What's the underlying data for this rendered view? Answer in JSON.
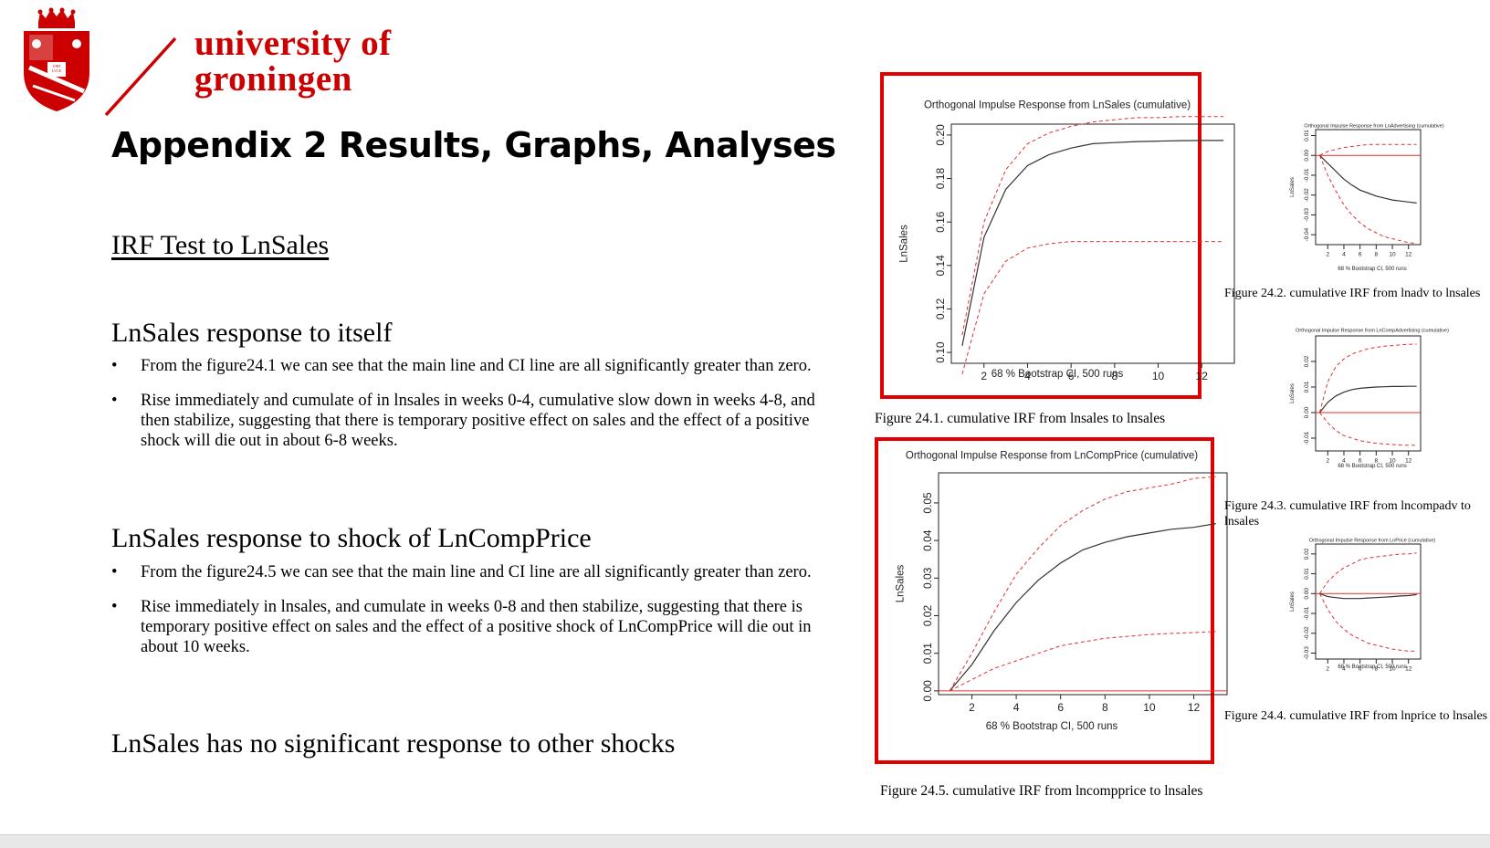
{
  "header": {
    "university_line1": "university of",
    "university_line2": "groningen",
    "crest_text": "VIRT LVCE NA"
  },
  "title": "Appendix 2 Results, Graphs, Analyses",
  "section_irf": "IRF Test to LnSales",
  "sec1": {
    "heading": "LnSales response to itself",
    "bullets": [
      "From the figure24.1 we can see that the main line and CI line are all significantly greater than zero.",
      "Rise immediately and cumulate of in lnsales in weeks 0-4, cumulative slow down in weeks 4-8, and then stabilize, suggesting that there is temporary positive effect on sales and the effect of a positive shock will die out in about 6-8 weeks."
    ]
  },
  "sec2": {
    "heading": "LnSales response to shock of LnCompPrice",
    "bullets": [
      "From the figure24.5 we can see that the main line and CI line are all significantly greater than zero.",
      "Rise immediately in lnsales, and cumulate in weeks 0-8 and then stabilize, suggesting that there is temporary positive effect on sales and the effect of a positive shock of LnCompPrice will die out in about 10 weeks."
    ]
  },
  "sec3": {
    "heading": "LnSales has no significant response to other shocks"
  },
  "captions": {
    "fig241": "Figure 24.1. cumulative IRF from lnsales to lnsales",
    "fig242": "Figure 24.2. cumulative IRF from lnadv to lnsales",
    "fig243_line1": "Figure 24.3. cumulative IRF from lncompadv to",
    "fig243_line2": "lnsales",
    "fig244": "Figure 24.4. cumulative IRF from lnprice to lnsales",
    "fig245": "Figure 24.5. cumulative IRF from lncompprice to lnsales"
  },
  "chart_data": [
    {
      "id": "fig241",
      "type": "line",
      "title": "Orthogonal Impulse Response from LnSales (cumulative)",
      "xlabel": "68 % Bootstrap CI,  500 runs",
      "ylabel": "LnSales",
      "xlim": [
        0.5,
        13.5
      ],
      "ylim": [
        0.095,
        0.205
      ],
      "xticks": [
        2,
        4,
        6,
        8,
        10,
        12
      ],
      "yticks": [
        0.1,
        0.12,
        0.14,
        0.16,
        0.18,
        0.2
      ],
      "ytick_labels": [
        "0.10",
        "0.12",
        "0.14",
        "0.16",
        "0.18",
        "0.20"
      ],
      "x": [
        1,
        2,
        3,
        4,
        5,
        6,
        7,
        8,
        9,
        10,
        11,
        12,
        13
      ],
      "series": [
        {
          "role": "main",
          "values": [
            0.103,
            0.153,
            0.175,
            0.186,
            0.191,
            0.194,
            0.196,
            0.1965,
            0.197,
            0.1972,
            0.1974,
            0.1975,
            0.1975
          ]
        },
        {
          "role": "upper",
          "values": [
            0.108,
            0.16,
            0.184,
            0.196,
            0.201,
            0.204,
            0.206,
            0.207,
            0.208,
            0.208,
            0.2085,
            0.2085,
            0.2085
          ]
        },
        {
          "role": "lower",
          "values": [
            0.09,
            0.127,
            0.142,
            0.148,
            0.15,
            0.151,
            0.151,
            0.151,
            0.151,
            0.151,
            0.151,
            0.151,
            0.151
          ]
        }
      ],
      "zero_line": false
    },
    {
      "id": "fig245",
      "type": "line",
      "title": "Orthogonal Impulse Response from LnCompPrice (cumulative)",
      "xlabel": "68 % Bootstrap CI,  500 runs",
      "ylabel": "LnSales",
      "xlim": [
        0.5,
        13.5
      ],
      "ylim": [
        -0.001,
        0.058
      ],
      "xticks": [
        2,
        4,
        6,
        8,
        10,
        12
      ],
      "yticks": [
        0,
        0.01,
        0.02,
        0.03,
        0.04,
        0.05
      ],
      "ytick_labels": [
        "0.00",
        "0.01",
        "0.02",
        "0.03",
        "0.04",
        "0.05"
      ],
      "x": [
        1,
        2,
        3,
        4,
        5,
        6,
        7,
        8,
        9,
        10,
        11,
        12,
        13
      ],
      "series": [
        {
          "role": "main",
          "values": [
            0.0,
            0.007,
            0.016,
            0.0235,
            0.0295,
            0.034,
            0.0375,
            0.0395,
            0.041,
            0.042,
            0.043,
            0.0435,
            0.0445
          ]
        },
        {
          "role": "upper",
          "values": [
            0.0,
            0.01,
            0.021,
            0.031,
            0.038,
            0.044,
            0.048,
            0.051,
            0.053,
            0.054,
            0.055,
            0.0565,
            0.057
          ]
        },
        {
          "role": "lower",
          "values": [
            0.0,
            0.003,
            0.006,
            0.008,
            0.01,
            0.012,
            0.013,
            0.014,
            0.0145,
            0.015,
            0.0153,
            0.0155,
            0.0158
          ]
        }
      ],
      "zero_line": true
    },
    {
      "id": "fig242",
      "type": "line",
      "title": "Orthogonal Impulse Response from LnAdvertising (cumulative)",
      "xlabel": "68 % Bootstrap CI,  500 runs",
      "ylabel": "LnSales",
      "xlim": [
        0.5,
        13.5
      ],
      "ylim": [
        -0.045,
        0.013
      ],
      "xticks": [
        2,
        4,
        6,
        8,
        10,
        12
      ],
      "yticks": [
        -0.04,
        -0.03,
        -0.02,
        -0.01,
        0.0,
        0.01
      ],
      "ytick_labels": [
        "-0.04",
        "-0.03",
        "-0.02",
        "-0.01",
        "0.00",
        "0.01"
      ],
      "x": [
        1,
        2,
        3,
        4,
        5,
        6,
        7,
        8,
        9,
        10,
        11,
        12,
        13
      ],
      "series": [
        {
          "role": "main",
          "values": [
            0.0,
            -0.004,
            -0.008,
            -0.012,
            -0.015,
            -0.0175,
            -0.019,
            -0.0205,
            -0.0215,
            -0.0225,
            -0.023,
            -0.0235,
            -0.024
          ]
        },
        {
          "role": "upper",
          "values": [
            0.0,
            0.002,
            0.003,
            0.004,
            0.0045,
            0.005,
            0.0055,
            0.0055,
            0.0055,
            0.0055,
            0.0055,
            0.0055,
            0.0055
          ]
        },
        {
          "role": "lower",
          "values": [
            0.0,
            -0.01,
            -0.018,
            -0.025,
            -0.03,
            -0.034,
            -0.037,
            -0.039,
            -0.041,
            -0.042,
            -0.043,
            -0.044,
            -0.0445
          ]
        }
      ],
      "zero_line": true
    },
    {
      "id": "fig243",
      "type": "line",
      "title": "Orthogonal Impulse Response from LnCompAdvertising (cumulative)",
      "xlabel": "68 % Bootstrap CI,  500 runs",
      "ylabel": "LnSales",
      "xlim": [
        0.5,
        13.5
      ],
      "ylim": [
        -0.015,
        0.03
      ],
      "xticks": [
        2,
        4,
        6,
        8,
        10,
        12
      ],
      "yticks": [
        -0.01,
        0.0,
        0.01,
        0.02
      ],
      "ytick_labels": [
        "-0.01",
        "0.00",
        "0.01",
        "0.02"
      ],
      "x": [
        1,
        2,
        3,
        4,
        5,
        6,
        7,
        8,
        9,
        10,
        11,
        12,
        13
      ],
      "series": [
        {
          "role": "main",
          "values": [
            0.0,
            0.004,
            0.0065,
            0.008,
            0.009,
            0.0095,
            0.0098,
            0.01,
            0.0101,
            0.0102,
            0.0102,
            0.0103,
            0.0103
          ]
        },
        {
          "role": "upper",
          "values": [
            0.0,
            0.012,
            0.018,
            0.021,
            0.023,
            0.024,
            0.025,
            0.0255,
            0.026,
            0.0262,
            0.0265,
            0.0267,
            0.0268
          ]
        },
        {
          "role": "lower",
          "values": [
            0.0,
            -0.004,
            -0.007,
            -0.009,
            -0.01,
            -0.011,
            -0.0115,
            -0.012,
            -0.0123,
            -0.0125,
            -0.0127,
            -0.0128,
            -0.0128
          ]
        }
      ],
      "zero_line": true
    },
    {
      "id": "fig244",
      "type": "line",
      "title": "Orthogonal Impulse Response from LnPrice (cumulative)",
      "xlabel": "68 % Bootstrap CI,  500 runs",
      "ylabel": "LnSales",
      "xlim": [
        0.5,
        13.5
      ],
      "ylim": [
        -0.033,
        0.025
      ],
      "xticks": [
        2,
        4,
        6,
        8,
        10,
        12
      ],
      "yticks": [
        -0.03,
        -0.02,
        -0.01,
        0.0,
        0.01,
        0.02
      ],
      "ytick_labels": [
        "-0.03",
        "-0.02",
        "-0.01",
        "0.00",
        "0.01",
        "0.02"
      ],
      "x": [
        1,
        2,
        3,
        4,
        5,
        6,
        7,
        8,
        9,
        10,
        11,
        12,
        13
      ],
      "series": [
        {
          "role": "main",
          "values": [
            0.0,
            -0.0015,
            -0.002,
            -0.0025,
            -0.0025,
            -0.0025,
            -0.0022,
            -0.002,
            -0.0018,
            -0.0015,
            -0.0012,
            -0.001,
            -0.0005
          ]
        },
        {
          "role": "upper",
          "values": [
            0.0,
            0.006,
            0.01,
            0.013,
            0.015,
            0.017,
            0.018,
            0.0185,
            0.019,
            0.0195,
            0.02,
            0.02,
            0.0205
          ]
        },
        {
          "role": "lower",
          "values": [
            0.0,
            -0.008,
            -0.014,
            -0.018,
            -0.021,
            -0.023,
            -0.025,
            -0.026,
            -0.027,
            -0.028,
            -0.0285,
            -0.029,
            -0.029
          ]
        }
      ],
      "zero_line": true
    }
  ]
}
